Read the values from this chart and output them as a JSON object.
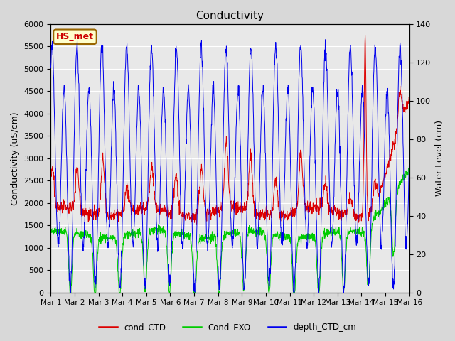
{
  "title": "Conductivity",
  "ylabel_left": "Conductivity (uS/cm)",
  "ylabel_right": "Water Level (cm)",
  "ylim_left": [
    0,
    6000
  ],
  "ylim_right": [
    0,
    140
  ],
  "yticks_left": [
    0,
    500,
    1000,
    1500,
    2000,
    2500,
    3000,
    3500,
    4000,
    4500,
    5000,
    5500,
    6000
  ],
  "yticks_right": [
    0,
    20,
    40,
    60,
    80,
    100,
    120,
    140
  ],
  "xtick_labels": [
    "Mar 1",
    "Mar 2",
    "Mar 3",
    "Mar 4",
    "Mar 5",
    "Mar 6",
    "Mar 7",
    "Mar 8",
    "Mar 9",
    "Mar 10",
    "Mar 11",
    "Mar 12",
    "Mar 13",
    "Mar 14",
    "Mar 15",
    "Mar 16"
  ],
  "annotation_text": "HS_met",
  "annotation_color": "#cc0000",
  "annotation_bg": "#ffffcc",
  "annotation_border": "#996600",
  "line_colors": {
    "cond_CTD": "#dd0000",
    "Cond_EXO": "#00cc00",
    "depth_CTD_cm": "#0000ee"
  },
  "legend_labels": [
    "cond_CTD",
    "Cond_EXO",
    "depth_CTD_cm"
  ],
  "bg_color": "#d8d8d8",
  "plot_bg": "#e8e8e8",
  "grid_color": "#ffffff"
}
